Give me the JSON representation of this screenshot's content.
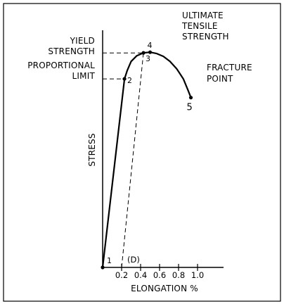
{
  "chart_data": {
    "type": "line",
    "title": "",
    "xlabel": "ELONGATION %",
    "ylabel": "STRESS",
    "x_ticks": [
      "0.2",
      "0.4",
      "0.6",
      "0.8",
      "1.0"
    ],
    "x_tick_values": [
      0.2,
      0.4,
      0.6,
      0.8,
      1.0
    ],
    "xlim": [
      0,
      1.3
    ],
    "ylim": [
      0,
      1.0
    ],
    "grid": false,
    "series": [
      {
        "x": [
          0,
          0.23,
          0.26,
          0.3,
          0.36,
          0.43,
          0.5,
          0.57,
          0.64,
          0.71,
          0.78,
          0.85,
          0.9,
          0.93
        ],
        "y": [
          0,
          0.856,
          0.895,
          0.935,
          0.961,
          0.974,
          0.977,
          0.971,
          0.958,
          0.935,
          0.902,
          0.856,
          0.804,
          0.771
        ]
      }
    ],
    "offset_line": {
      "x": [
        0.2,
        0.43
      ],
      "y": [
        0,
        0.974
      ]
    },
    "points": [
      {
        "number": "1",
        "x": 0,
        "y": 0,
        "label": ""
      },
      {
        "number": "2",
        "x": 0.23,
        "y": 0.856,
        "label": "PROPORTIONAL LIMIT"
      },
      {
        "number": "3",
        "x": 0.43,
        "y": 0.974,
        "label": "YIELD STRENGTH"
      },
      {
        "number": "4",
        "x": 0.5,
        "y": 0.977,
        "label": "ULTIMATE TENSILE STRENGTH"
      },
      {
        "number": "5",
        "x": 0.93,
        "y": 0.771,
        "label": "FRACTURE POINT"
      }
    ],
    "annotations": {
      "yield": [
        "YIELD",
        "STRENGTH"
      ],
      "proportional": [
        "PROPORTIONAL",
        "LIMIT"
      ],
      "ultimate": [
        "ULTIMATE",
        "TENSILE",
        "STRENGTH"
      ],
      "fracture": [
        "FRACTURE",
        "POINT"
      ],
      "offset_marker": "(D)"
    }
  }
}
